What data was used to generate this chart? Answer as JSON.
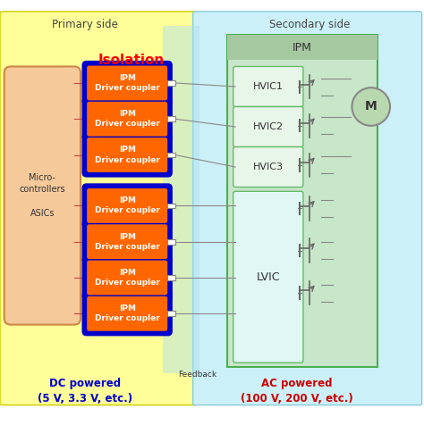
{
  "fig_width": 4.74,
  "fig_height": 4.76,
  "bg_color": "#ffffff",
  "primary_bg": "#ffff99",
  "secondary_bg": "#ccf0f8",
  "primary_label": "Primary side",
  "secondary_label": "Secondary side",
  "dc_label": "DC powered\n(5 V, 3.3 V, etc.)",
  "ac_label": "AC powered\n(100 V, 200 V, etc.)",
  "dc_label_color": "#0000cc",
  "ac_label_color": "#cc0000",
  "isolation_label": "Isolation",
  "isolation_color": "#ff0000",
  "micro_box_color": "#f4a460",
  "micro_box_facecolor": "#f5c99a",
  "micro_label": "Micro-\ncontrollers\n\nASICs",
  "ipm_coupler_bg": "#ff6600",
  "ipm_coupler_border": "#0000cc",
  "ipm_coupler_text": "IPM\nDriver coupler",
  "ipm_coupler_text_color": "#ffffff",
  "ipm_box_bg": "#c8e6c9",
  "ipm_box_border": "#4caf50",
  "ipm_header_bg": "#a5c8a0",
  "ipm_label": "IPM",
  "hvic_bg": "#e8f5e9",
  "hvic_border": "#66bb6a",
  "hvic_labels": [
    "HVIC1",
    "HVIC2",
    "HVIC3"
  ],
  "lvic_bg": "#e0f7f4",
  "lvic_border": "#66bb6a",
  "lvic_label": "LVIC",
  "motor_color": "#b8d8b0",
  "motor_label": "M",
  "feedback_label": "Feedback",
  "arrow_color": "#888888",
  "connector_color": "#888888"
}
